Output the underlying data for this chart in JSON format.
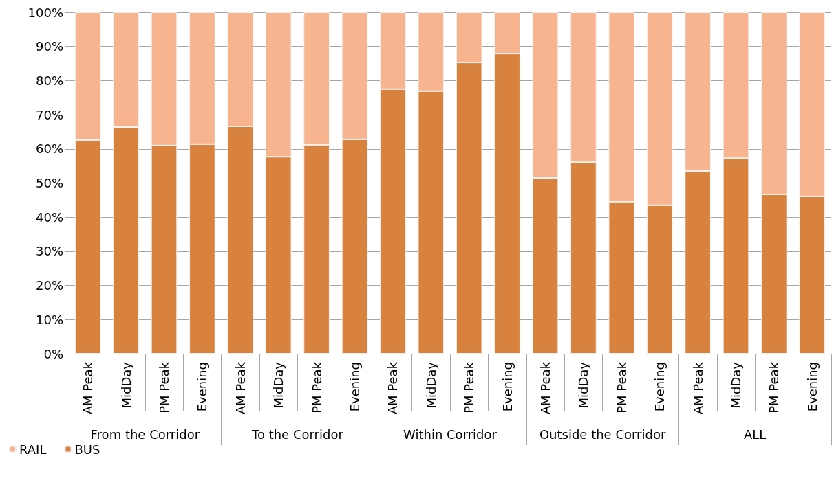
{
  "chart_data": {
    "type": "bar",
    "stacked": true,
    "categories": [
      "AM Peak",
      "MidDay",
      "PM Peak",
      "Evening",
      "AM Peak",
      "MidDay",
      "PM Peak",
      "Evening",
      "AM Peak",
      "MidDay",
      "PM Peak",
      "Evening",
      "AM Peak",
      "MidDay",
      "PM Peak",
      "Evening",
      "AM Peak",
      "MidDay",
      "PM Peak",
      "Evening"
    ],
    "annotations": [
      "From the Corridor",
      "To the Corridor",
      "Within Corridor",
      "Outside the Corridor",
      "ALL"
    ],
    "series": [
      {
        "name": "BUS",
        "color": "#d9823e",
        "values": [
          62.6,
          66.4,
          61,
          61.4,
          66.6,
          57.7,
          61.2,
          62.8,
          77.5,
          76.9,
          85.3,
          87.9,
          51.5,
          56.1,
          44.5,
          43.5,
          53.5,
          57.3,
          46.7,
          46.1
        ]
      },
      {
        "name": "RAIL",
        "color": "#f8b48f",
        "values": [
          37.4,
          33.6,
          39,
          38.6,
          33.4,
          42.3,
          38.8,
          37.2,
          22.5,
          23.1,
          14.7,
          12.1,
          48.5,
          43.9,
          55.5,
          56.5,
          46.5,
          42.7,
          53.3,
          53.9
        ]
      }
    ],
    "ylim": [
      0,
      100
    ],
    "yticks": [
      {
        "value": 0,
        "label": "0%"
      },
      {
        "value": 10,
        "label": "10%"
      },
      {
        "value": 20,
        "label": "20%"
      },
      {
        "value": 30,
        "label": "30%"
      },
      {
        "value": 40,
        "label": "40%"
      },
      {
        "value": 50,
        "label": "50%"
      },
      {
        "value": 60,
        "label": "60%"
      },
      {
        "value": 70,
        "label": "70%"
      },
      {
        "value": 80,
        "label": "80%"
      },
      {
        "value": 90,
        "label": "90%"
      },
      {
        "value": 100,
        "label": "100%"
      }
    ],
    "grid": "y",
    "legend": "bottom left"
  }
}
